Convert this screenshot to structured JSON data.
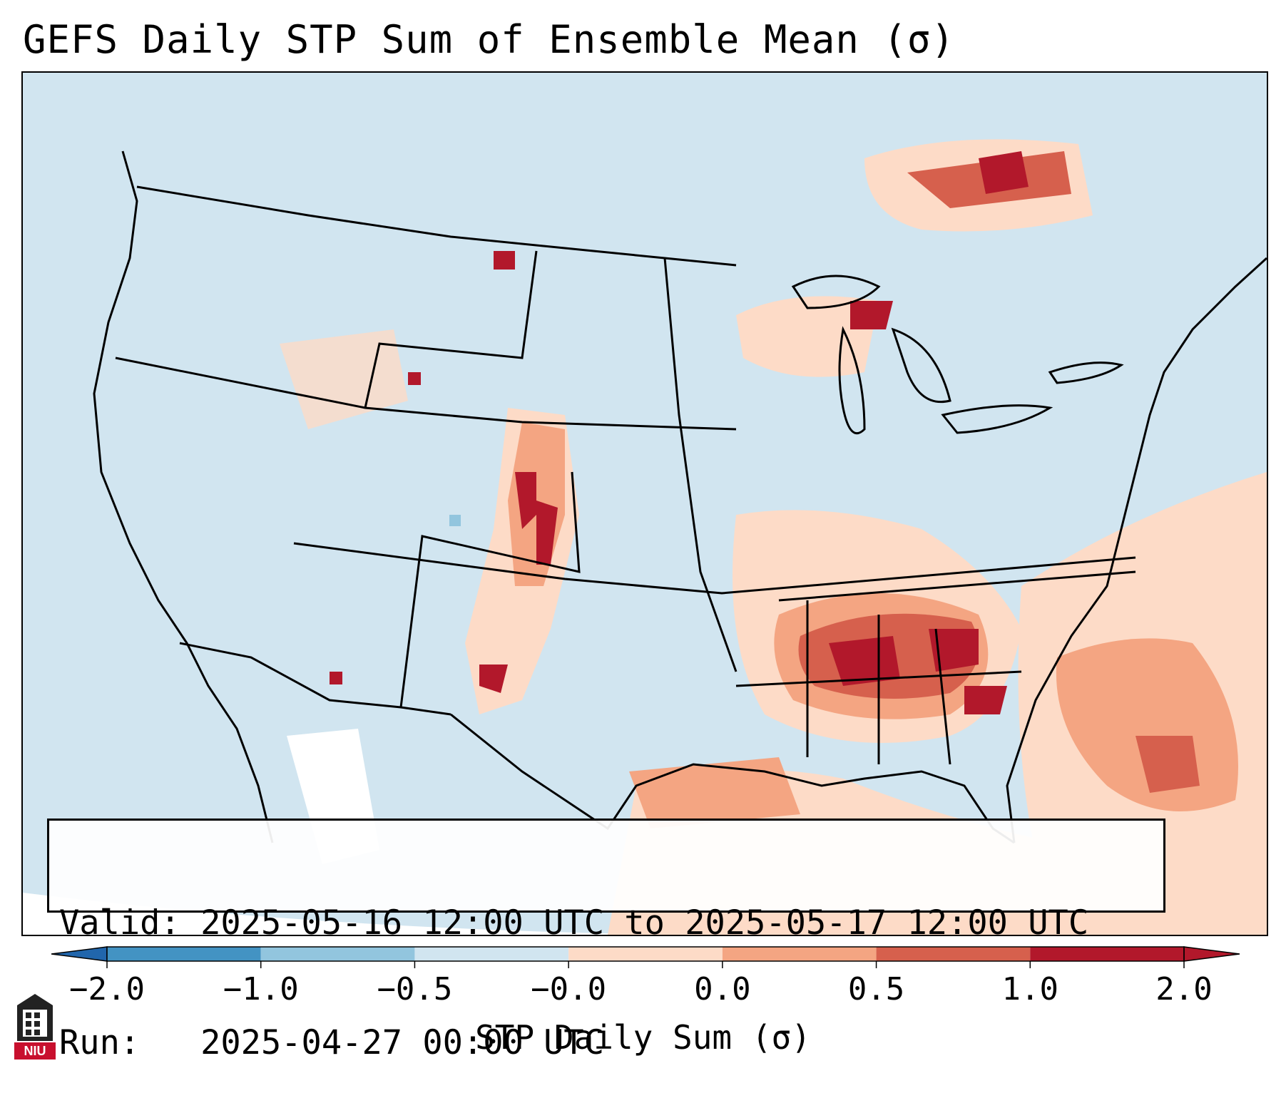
{
  "title": "GEFS Daily STP Sum of Ensemble Mean (σ)",
  "info": {
    "valid_label": "Valid:",
    "valid_value": "2025-05-16 12:00 UTC to 2025-05-17 12:00 UTC",
    "run_label": "Run:",
    "run_value": "2025-04-27 00:00 UTC"
  },
  "colorbar": {
    "title": "STP Daily Sum (σ)",
    "ticks": [
      "−2.0",
      "−1.0",
      "−0.5",
      "−0.0",
      "0.0",
      "0.5",
      "1.0",
      "2.0"
    ],
    "colors": [
      "#4393c3",
      "#92c5de",
      "#d1e5f0",
      "#f7f7f7",
      "#fddbc7",
      "#f4a582",
      "#d6604d",
      "#b2182b"
    ],
    "extend": "both"
  },
  "map": {
    "projection": "Lambert Conformal CONUS",
    "background_color": "#d1e5f0",
    "boundary_color": "#000000",
    "highlighted_regions": [
      {
        "name": "Southeast US (Mississippi, Alabama, Georgia, South Carolina)",
        "category": "1.0 to 2.0"
      },
      {
        "name": "High Plains (eastern Colorado, Wyoming)",
        "category": "1.0 to 2.0"
      },
      {
        "name": "Upper Great Lakes / Ontario",
        "category": "1.0 to 2.0"
      },
      {
        "name": "Gulf of Mexico / Western Atlantic",
        "category": "0.0 to 1.0"
      }
    ]
  },
  "logo": {
    "text": "NIU"
  }
}
